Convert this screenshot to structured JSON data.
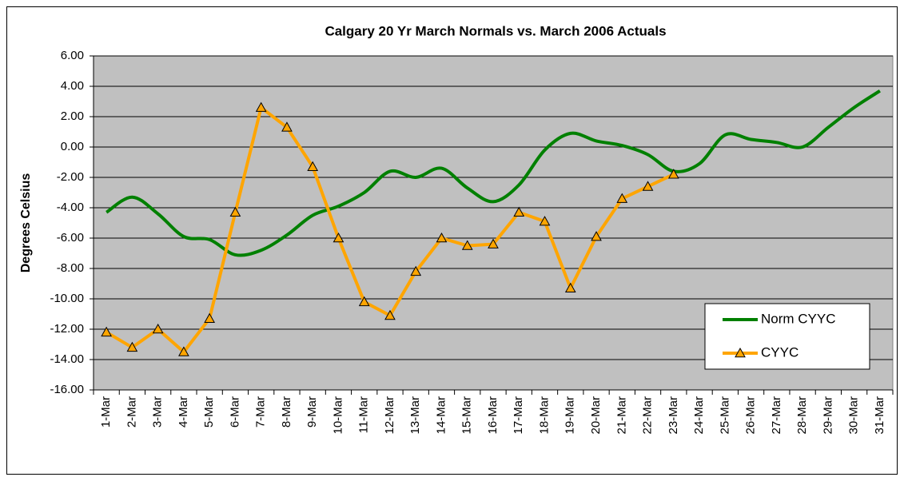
{
  "chart_data": {
    "type": "line",
    "title": "Calgary 20 Yr March Normals vs. March 2006 Actuals",
    "y_label": "Degrees Celsius",
    "categories": [
      "1-Mar",
      "2-Mar",
      "3-Mar",
      "4-Mar",
      "5-Mar",
      "6-Mar",
      "7-Mar",
      "8-Mar",
      "9-Mar",
      "10-Mar",
      "11-Mar",
      "12-Mar",
      "13-Mar",
      "14-Mar",
      "15-Mar",
      "16-Mar",
      "17-Mar",
      "18-Mar",
      "19-Mar",
      "20-Mar",
      "21-Mar",
      "22-Mar",
      "23-Mar",
      "24-Mar",
      "25-Mar",
      "26-Mar",
      "27-Mar",
      "28-Mar",
      "29-Mar",
      "30-Mar",
      "31-Mar"
    ],
    "series": [
      {
        "name": "Norm CYYC",
        "color": "#008000",
        "smooth": true,
        "values": [
          -4.3,
          -3.3,
          -4.4,
          -5.9,
          -6.1,
          -7.1,
          -6.8,
          -5.8,
          -4.5,
          -3.9,
          -3.0,
          -1.6,
          -2.0,
          -1.4,
          -2.7,
          -3.6,
          -2.5,
          -0.2,
          0.9,
          0.4,
          0.1,
          -0.5,
          -1.6,
          -1.1,
          0.8,
          0.5,
          0.3,
          0.0,
          1.3,
          2.6,
          3.7
        ]
      },
      {
        "name": "CYYC",
        "color": "#ffa500",
        "marker": "triangle",
        "values": [
          -12.2,
          -13.2,
          -12.0,
          -13.5,
          -11.3,
          -4.3,
          2.6,
          1.3,
          -1.3,
          -6.0,
          -10.2,
          -11.1,
          -8.2,
          -6.0,
          -6.5,
          -6.4,
          -4.3,
          -4.9,
          -9.3,
          -5.9,
          -3.4,
          -2.6,
          -1.8,
          null,
          null,
          null,
          null,
          null,
          null,
          null,
          null
        ]
      }
    ],
    "ylim": [
      -16,
      6
    ],
    "yticks": [
      {
        "value": -16,
        "label": "-16.00"
      },
      {
        "value": -14,
        "label": "-14.00"
      },
      {
        "value": -12,
        "label": "-12.00"
      },
      {
        "value": -10,
        "label": "-10.00"
      },
      {
        "value": -8,
        "label": "-8.00"
      },
      {
        "value": -6,
        "label": "-6.00"
      },
      {
        "value": -4,
        "label": "-4.00"
      },
      {
        "value": -2,
        "label": "-2.00"
      },
      {
        "value": 0,
        "label": "0.00"
      },
      {
        "value": 2,
        "label": "2.00"
      },
      {
        "value": 4,
        "label": "4.00"
      },
      {
        "value": 6,
        "label": "6.00"
      }
    ],
    "grid": true,
    "legend": "lower right",
    "plot_background": "#c0c0c0"
  }
}
